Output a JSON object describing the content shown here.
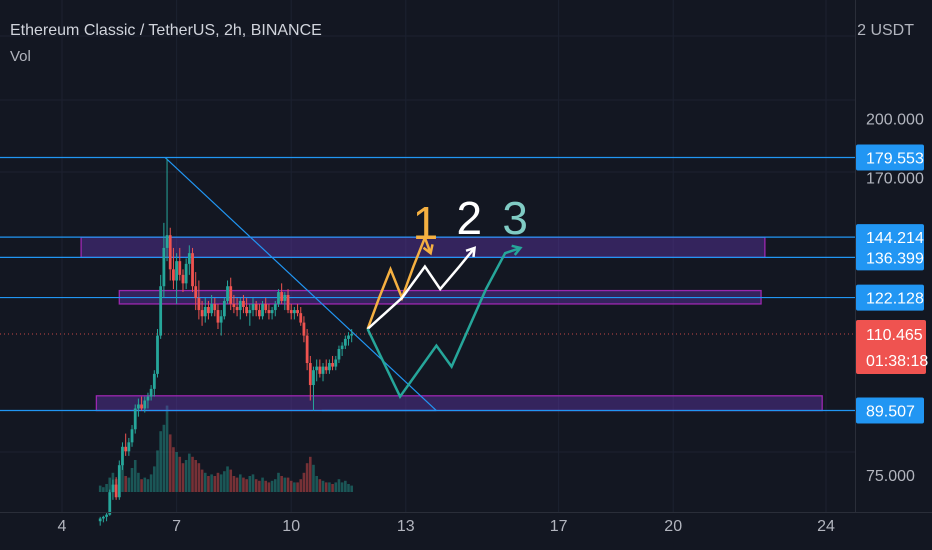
{
  "header": {
    "symbol": "Ethereum Classic / TetherUS, 2h, BINANCE",
    "volume_label": "Vol",
    "currency": "2 USDT"
  },
  "colors": {
    "background": "#131722",
    "up": "#26a69a",
    "down": "#ef5350",
    "level_line": "#2196f3",
    "zone_fill": "#673ab7",
    "zone_border": "#9c27b0",
    "path_1": "#f5b041",
    "path_2": "#ffffff",
    "path_3": "#26a69a",
    "label_3": "#80cbc4",
    "price_line": "#ef5350"
  },
  "chart_data": {
    "type": "candlestick",
    "title": "Ethereum Classic / TetherUS, 2h, BINANCE",
    "y_scale": "log",
    "y_ticks": [
      "200.000",
      "170.000",
      "75.000"
    ],
    "x_ticks": [
      "4",
      "7",
      "10",
      "13",
      "17",
      "20",
      "24"
    ],
    "x_range_days": [
      3.3,
      25.0
    ],
    "last_price": "110.465",
    "countdown": "01:38:18",
    "horizontal_levels": [
      179.553,
      144.214,
      136.399,
      122.128,
      89.507
    ],
    "level_labels": [
      "179.553",
      "144.214",
      "136.399",
      "122.128",
      "89.507"
    ],
    "zones": [
      {
        "from_day": 4.5,
        "to_day": 22.4,
        "low": 136.4,
        "high": 144.2
      },
      {
        "from_day": 5.5,
        "to_day": 22.3,
        "low": 120.0,
        "high": 124.5
      },
      {
        "from_day": 4.9,
        "to_day": 23.9,
        "low": 89.5,
        "high": 93.2
      }
    ],
    "trendlines": [
      {
        "from": [
          6.7,
          179.5
        ],
        "to": [
          13.8,
          89.5
        ]
      },
      {
        "from": [
          10.8,
          89.5
        ],
        "to": [
          13.8,
          89.5
        ]
      }
    ],
    "projection_paths": [
      {
        "label": "1",
        "points": [
          [
            12.0,
            112
          ],
          [
            12.3,
            122
          ],
          [
            12.6,
            132
          ],
          [
            12.9,
            122
          ],
          [
            13.2,
            133
          ],
          [
            13.5,
            144
          ],
          [
            13.65,
            138
          ]
        ]
      },
      {
        "label": "2",
        "points": [
          [
            12.0,
            112
          ],
          [
            12.9,
            122
          ],
          [
            13.5,
            133
          ],
          [
            13.9,
            125
          ],
          [
            14.4,
            133
          ],
          [
            14.8,
            140
          ]
        ]
      },
      {
        "label": "3",
        "points": [
          [
            12.0,
            112
          ],
          [
            12.85,
            93
          ],
          [
            13.8,
            107
          ],
          [
            14.2,
            101
          ],
          [
            15.1,
            125
          ],
          [
            15.6,
            138
          ],
          [
            16.0,
            140
          ]
        ]
      }
    ],
    "ohlc": [
      [
        5.0,
        66.0,
        66.8,
        65.2,
        66.5
      ],
      [
        5.083,
        66.5,
        67.0,
        65.8,
        66.8
      ],
      [
        5.167,
        66.8,
        67.5,
        66.0,
        67.2
      ],
      [
        5.25,
        67.2,
        72.0,
        67.0,
        71.5
      ],
      [
        5.333,
        71.5,
        74.0,
        70.0,
        73.0
      ],
      [
        5.417,
        73.0,
        74.5,
        70.0,
        70.5
      ],
      [
        5.5,
        70.5,
        78.0,
        70.0,
        77.0
      ],
      [
        5.583,
        77.0,
        82.0,
        76.0,
        81.0
      ],
      [
        5.667,
        81.0,
        84.0,
        79.0,
        80.0
      ],
      [
        5.75,
        80.0,
        83.0,
        79.0,
        82.0
      ],
      [
        5.833,
        82.0,
        86.0,
        81.0,
        85.0
      ],
      [
        5.917,
        85.0,
        91.0,
        84.0,
        90.0
      ],
      [
        6.0,
        90.0,
        92.5,
        88.0,
        91.0
      ],
      [
        6.083,
        91.0,
        93.0,
        89.5,
        90.0
      ],
      [
        6.167,
        90.0,
        93.0,
        89.0,
        92.0
      ],
      [
        6.25,
        92.0,
        94.0,
        90.0,
        93.0
      ],
      [
        6.333,
        93.0,
        96.0,
        92.0,
        95.0
      ],
      [
        6.417,
        95.0,
        100.0,
        93.0,
        99.0
      ],
      [
        6.5,
        99.0,
        112.0,
        98.0,
        110.0
      ],
      [
        6.583,
        110.0,
        130.0,
        109.0,
        126.0
      ],
      [
        6.667,
        126.0,
        150.0,
        122.0,
        140.0
      ],
      [
        6.75,
        140.0,
        179.0,
        135.0,
        145.0
      ],
      [
        6.833,
        145.0,
        148.0,
        128.0,
        132.0
      ],
      [
        6.917,
        132.0,
        140.0,
        125.0,
        128.0
      ],
      [
        7.0,
        128.0,
        138.0,
        120.0,
        135.0
      ],
      [
        7.083,
        135.0,
        140.0,
        128.0,
        130.0
      ],
      [
        7.167,
        130.0,
        132.0,
        124.0,
        127.0
      ],
      [
        7.25,
        127.0,
        136.0,
        125.0,
        134.0
      ],
      [
        7.333,
        134.0,
        141.0,
        130.0,
        138.0
      ],
      [
        7.417,
        138.0,
        140.0,
        124.0,
        126.0
      ],
      [
        7.5,
        126.0,
        131.0,
        118.0,
        122.0
      ],
      [
        7.583,
        122.0,
        128.0,
        115.0,
        118.0
      ],
      [
        7.667,
        118.0,
        121.0,
        113.0,
        116.0
      ],
      [
        7.75,
        116.0,
        122.0,
        114.0,
        119.0
      ],
      [
        7.833,
        119.0,
        121.0,
        115.0,
        117.0
      ],
      [
        7.917,
        117.0,
        123.0,
        116.0,
        120.0
      ],
      [
        8.0,
        120.0,
        122.0,
        116.0,
        118.0
      ],
      [
        8.083,
        118.0,
        120.0,
        112.0,
        114.0
      ],
      [
        8.167,
        114.0,
        118.0,
        110.0,
        116.0
      ],
      [
        8.25,
        116.0,
        122.0,
        115.0,
        121.0
      ],
      [
        8.333,
        121.0,
        128.0,
        120.0,
        126.0
      ],
      [
        8.417,
        126.0,
        129.0,
        118.0,
        120.0
      ],
      [
        8.5,
        120.0,
        123.0,
        117.0,
        119.0
      ],
      [
        8.583,
        119.0,
        122.0,
        116.0,
        118.0
      ],
      [
        8.667,
        118.0,
        122.0,
        115.0,
        121.0
      ],
      [
        8.75,
        121.0,
        123.0,
        117.0,
        119.0
      ],
      [
        8.833,
        119.0,
        122.0,
        116.0,
        117.0
      ],
      [
        8.917,
        117.0,
        120.0,
        113.0,
        118.0
      ],
      [
        9.0,
        118.0,
        122.0,
        116.0,
        120.0
      ],
      [
        9.083,
        120.0,
        121.0,
        116.0,
        118.0
      ],
      [
        9.167,
        118.0,
        120.0,
        115.0,
        116.0
      ],
      [
        9.25,
        116.0,
        121.0,
        115.0,
        120.0
      ],
      [
        9.333,
        120.0,
        122.0,
        117.0,
        118.0
      ],
      [
        9.417,
        118.0,
        120.0,
        115.0,
        117.0
      ],
      [
        9.5,
        117.0,
        119.0,
        115.0,
        118.0
      ],
      [
        9.583,
        118.0,
        121.0,
        116.0,
        120.0
      ],
      [
        9.667,
        120.0,
        125.0,
        119.0,
        124.0
      ],
      [
        9.75,
        124.0,
        127.0,
        120.0,
        121.0
      ],
      [
        9.833,
        121.0,
        124.0,
        118.0,
        123.0
      ],
      [
        9.917,
        123.0,
        125.0,
        117.0,
        118.0
      ],
      [
        10.0,
        118.0,
        120.0,
        115.0,
        117.0
      ],
      [
        10.083,
        117.0,
        119.0,
        115.0,
        118.0
      ],
      [
        10.167,
        118.0,
        120.0,
        116.0,
        117.0
      ],
      [
        10.25,
        117.0,
        119.0,
        113.0,
        114.0
      ],
      [
        10.333,
        114.0,
        116.0,
        108.0,
        110.0
      ],
      [
        10.417,
        110.0,
        112.0,
        100.0,
        102.0
      ],
      [
        10.5,
        102.0,
        104.0,
        92.0,
        96.0
      ],
      [
        10.583,
        96.0,
        101.0,
        89.5,
        100.0
      ],
      [
        10.667,
        100.0,
        103.0,
        97.0,
        101.0
      ],
      [
        10.75,
        101.0,
        103.0,
        98.0,
        99.0
      ],
      [
        10.833,
        99.0,
        102.0,
        97.0,
        101.0
      ],
      [
        10.917,
        101.0,
        103.0,
        99.0,
        100.0
      ],
      [
        11.0,
        100.0,
        103.0,
        99.0,
        102.0
      ],
      [
        11.083,
        102.0,
        104.0,
        100.0,
        101.0
      ],
      [
        11.167,
        101.0,
        104.0,
        100.0,
        103.0
      ],
      [
        11.25,
        103.0,
        107.0,
        102.0,
        106.0
      ],
      [
        11.333,
        106.0,
        108.0,
        104.0,
        107.0
      ],
      [
        11.417,
        107.0,
        110.0,
        106.0,
        109.0
      ],
      [
        11.5,
        109.0,
        111.0,
        107.0,
        110.0
      ],
      [
        11.583,
        110.0,
        112.0,
        108.0,
        110.5
      ]
    ],
    "volume": [
      [
        5.0,
        4,
        1
      ],
      [
        5.083,
        3,
        1
      ],
      [
        5.167,
        5,
        1
      ],
      [
        5.25,
        9,
        1
      ],
      [
        5.333,
        12,
        1
      ],
      [
        5.417,
        8,
        0
      ],
      [
        5.5,
        14,
        1
      ],
      [
        5.583,
        18,
        1
      ],
      [
        5.667,
        10,
        0
      ],
      [
        5.75,
        9,
        1
      ],
      [
        5.833,
        15,
        1
      ],
      [
        5.917,
        20,
        1
      ],
      [
        6.0,
        12,
        1
      ],
      [
        6.083,
        8,
        0
      ],
      [
        6.167,
        9,
        1
      ],
      [
        6.25,
        8,
        1
      ],
      [
        6.333,
        11,
        1
      ],
      [
        6.417,
        16,
        1
      ],
      [
        6.5,
        26,
        1
      ],
      [
        6.583,
        38,
        1
      ],
      [
        6.667,
        42,
        1
      ],
      [
        6.75,
        54,
        1
      ],
      [
        6.833,
        36,
        0
      ],
      [
        6.917,
        28,
        0
      ],
      [
        7.0,
        25,
        1
      ],
      [
        7.083,
        22,
        0
      ],
      [
        7.167,
        18,
        0
      ],
      [
        7.25,
        20,
        1
      ],
      [
        7.333,
        24,
        1
      ],
      [
        7.417,
        22,
        0
      ],
      [
        7.5,
        20,
        0
      ],
      [
        7.583,
        18,
        0
      ],
      [
        7.667,
        14,
        0
      ],
      [
        7.75,
        12,
        1
      ],
      [
        7.833,
        10,
        0
      ],
      [
        7.917,
        11,
        1
      ],
      [
        8.0,
        10,
        0
      ],
      [
        8.083,
        12,
        0
      ],
      [
        8.167,
        11,
        1
      ],
      [
        8.25,
        13,
        1
      ],
      [
        8.333,
        16,
        1
      ],
      [
        8.417,
        14,
        0
      ],
      [
        8.5,
        10,
        0
      ],
      [
        8.583,
        9,
        0
      ],
      [
        8.667,
        11,
        1
      ],
      [
        8.75,
        9,
        0
      ],
      [
        8.833,
        8,
        0
      ],
      [
        8.917,
        10,
        1
      ],
      [
        9.0,
        11,
        1
      ],
      [
        9.083,
        8,
        0
      ],
      [
        9.167,
        7,
        0
      ],
      [
        9.25,
        9,
        1
      ],
      [
        9.333,
        7,
        0
      ],
      [
        9.417,
        6,
        0
      ],
      [
        9.5,
        7,
        1
      ],
      [
        9.583,
        8,
        1
      ],
      [
        9.667,
        12,
        1
      ],
      [
        9.75,
        10,
        0
      ],
      [
        9.833,
        9,
        1
      ],
      [
        9.917,
        9,
        0
      ],
      [
        10.0,
        7,
        0
      ],
      [
        10.083,
        6,
        1
      ],
      [
        10.167,
        6,
        0
      ],
      [
        10.25,
        8,
        0
      ],
      [
        10.333,
        12,
        0
      ],
      [
        10.417,
        18,
        0
      ],
      [
        10.5,
        22,
        0
      ],
      [
        10.583,
        17,
        1
      ],
      [
        10.667,
        10,
        1
      ],
      [
        10.75,
        8,
        0
      ],
      [
        10.833,
        7,
        1
      ],
      [
        10.917,
        6,
        0
      ],
      [
        11.0,
        6,
        1
      ],
      [
        11.083,
        5,
        0
      ],
      [
        11.167,
        6,
        1
      ],
      [
        11.25,
        8,
        1
      ],
      [
        11.333,
        6,
        1
      ],
      [
        11.417,
        7,
        1
      ],
      [
        11.5,
        5,
        1
      ],
      [
        11.583,
        4,
        1
      ]
    ]
  }
}
